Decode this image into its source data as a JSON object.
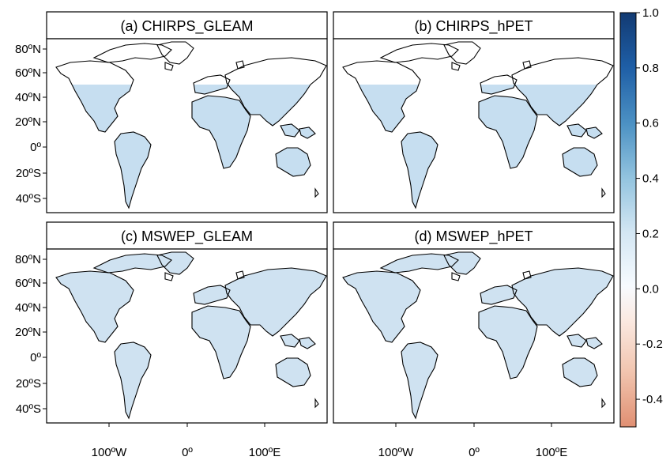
{
  "panels": [
    {
      "id": "a",
      "title": "(a) CHIRPS_GLEAM",
      "coverage": "60S-50N",
      "palette": "chirps"
    },
    {
      "id": "b",
      "title": "(b) CHIRPS_hPET",
      "coverage": "60S-50N",
      "palette": "chirps"
    },
    {
      "id": "c",
      "title": "(c) MSWEP_GLEAM",
      "coverage": "global",
      "palette": "mswep"
    },
    {
      "id": "d",
      "title": "(d) MSWEP_hPET",
      "coverage": "global",
      "palette": "mswep"
    }
  ],
  "y_ticks": [
    "80ºN",
    "60ºN",
    "40ºN",
    "20ºN",
    "0º",
    "20ºS",
    "40ºS"
  ],
  "x_ticks": [
    "100ºW",
    "0º",
    "100ºE"
  ],
  "colorbar": {
    "min": -0.5,
    "max": 1.0,
    "ticks": [
      {
        "value": 1.0,
        "label": "1.0"
      },
      {
        "value": 0.8,
        "label": "0.8"
      },
      {
        "value": 0.6,
        "label": "0.6"
      },
      {
        "value": 0.4,
        "label": "0.4"
      },
      {
        "value": 0.2,
        "label": "0.2"
      },
      {
        "value": 0.0,
        "label": "0.0"
      },
      {
        "value": -0.2,
        "label": "-0.2"
      },
      {
        "value": -0.4,
        "label": "-0.4"
      }
    ],
    "colors": [
      "#e08f72",
      "#f1c4ae",
      "#fbeae2",
      "#f7fbff",
      "#d3e6f3",
      "#93c4df",
      "#4d92c4",
      "#1e5ea6",
      "#123a72"
    ]
  }
}
